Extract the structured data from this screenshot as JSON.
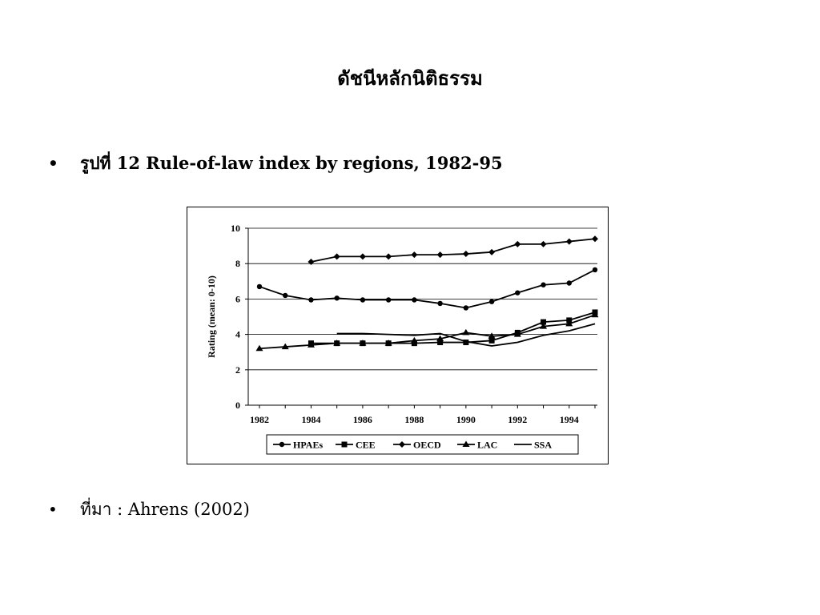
{
  "slide": {
    "title": "ดัชนีหลักนิติธรรม",
    "bullet_char": "•",
    "bullet1": "รูปที่ 12 Rule-of-law index by regions, 1982-95",
    "bullet2": "ที่มา : Ahrens (2002)"
  },
  "chart_data": {
    "type": "line",
    "title": "",
    "xlabel": "",
    "ylabel": "Rating (mean: 0-10)",
    "xlim": [
      1982,
      1995
    ],
    "ylim": [
      0,
      10
    ],
    "x_ticks": [
      "1982",
      "1984",
      "1986",
      "1988",
      "1990",
      "1992",
      "1994"
    ],
    "y_ticks": [
      "0",
      "2",
      "4",
      "6",
      "8",
      "10"
    ],
    "grid": "horizontal",
    "legend_position": "bottom",
    "series": [
      {
        "name": "HPAEs",
        "marker": "circle",
        "x": [
          1982,
          1983,
          1984,
          1985,
          1986,
          1987,
          1988,
          1989,
          1990,
          1991,
          1992,
          1993,
          1994,
          1995
        ],
        "values": [
          6.7,
          6.2,
          5.95,
          6.05,
          5.95,
          5.95,
          5.95,
          5.75,
          5.5,
          5.85,
          6.35,
          6.8,
          6.9,
          7.65
        ]
      },
      {
        "name": "CEE",
        "marker": "square",
        "x": [
          1984,
          1985,
          1986,
          1987,
          1988,
          1989,
          1990,
          1991,
          1992,
          1993,
          1994,
          1995
        ],
        "values": [
          3.5,
          3.5,
          3.5,
          3.5,
          3.5,
          3.55,
          3.55,
          3.65,
          4.1,
          4.7,
          4.8,
          5.25
        ]
      },
      {
        "name": "OECD",
        "marker": "diamond",
        "x": [
          1984,
          1985,
          1986,
          1987,
          1988,
          1989,
          1990,
          1991,
          1992,
          1993,
          1994,
          1995
        ],
        "values": [
          8.1,
          8.4,
          8.4,
          8.4,
          8.5,
          8.5,
          8.55,
          8.65,
          9.1,
          9.1,
          9.25,
          9.4
        ]
      },
      {
        "name": "LAC",
        "marker": "triangle",
        "x": [
          1982,
          1983,
          1984,
          1985,
          1986,
          1987,
          1988,
          1989,
          1990,
          1991,
          1992,
          1993,
          1994,
          1995
        ],
        "values": [
          3.2,
          3.3,
          3.4,
          3.5,
          3.5,
          3.5,
          3.65,
          3.75,
          4.1,
          3.9,
          4.0,
          4.45,
          4.6,
          5.1
        ]
      },
      {
        "name": "SSA",
        "marker": "none",
        "x": [
          1985,
          1986,
          1987,
          1988,
          1989,
          1990,
          1991,
          1992,
          1993,
          1994,
          1995
        ],
        "values": [
          4.05,
          4.05,
          4.0,
          3.95,
          4.05,
          3.6,
          3.35,
          3.55,
          3.95,
          4.2,
          4.6
        ]
      }
    ]
  }
}
